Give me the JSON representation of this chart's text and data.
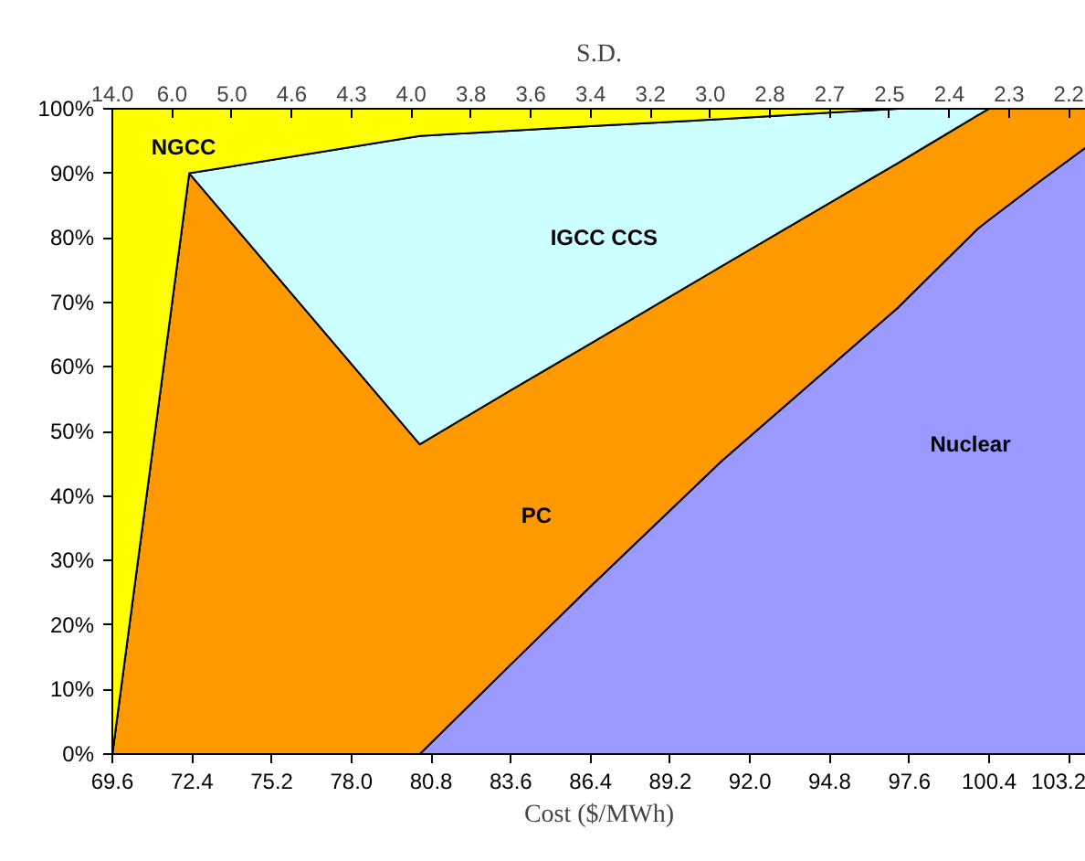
{
  "chart_data": {
    "type": "area",
    "stacked": true,
    "xlabel": "Cost ($/MWh)",
    "x2label": "S.D.",
    "x": [
      69.6,
      72.3,
      80.4,
      83.6,
      86.4,
      91.0,
      96.0,
      97.2,
      100.0,
      100.4,
      102.1,
      103.8
    ],
    "series": [
      {
        "name": "Nuclear",
        "color": "#9999ff",
        "values": [
          0,
          0,
          0,
          13.9,
          26,
          45.4,
          64.6,
          69.2,
          81.4,
          82.8,
          88.5,
          94
        ]
      },
      {
        "name": "PC",
        "color": "#ff9900",
        "values": [
          0,
          90,
          48,
          42.5,
          37.6,
          30.2,
          23.9,
          22.4,
          17.6,
          17.2,
          11.5,
          6
        ]
      },
      {
        "name": "IGCC CCS",
        "color": "#ccffff",
        "values": [
          0,
          0,
          47.8,
          40.2,
          33.7,
          22.8,
          11.2,
          8.4,
          1.0,
          0,
          null,
          null
        ]
      },
      {
        "name": "NGCC",
        "color": "#ffff00",
        "values": [
          100,
          10,
          4.2,
          3.4,
          2.7,
          1.6,
          0.3,
          0,
          null,
          null,
          null,
          null
        ]
      }
    ],
    "xlim": [
      69.6,
      103.8
    ],
    "xticks": [
      69.6,
      72.4,
      75.2,
      {
        "value": 78.0,
        "label": "78.0"
      },
      80.8,
      83.6,
      86.4,
      89.2,
      {
        "value": 92.0,
        "label": "92.0"
      },
      94.8,
      97.6,
      100.4,
      103.2
    ],
    "annotations": [
      "14.0",
      "6.0",
      "5.0",
      "4.6",
      "4.3",
      "4.0",
      "3.8",
      "3.6",
      "3.4",
      "3.2",
      "3.0",
      "2.8",
      "2.7",
      "2.5",
      "2.4",
      "2.3",
      "2.2"
    ],
    "ylim": [
      0,
      100
    ],
    "yticks": [
      {
        "value": 0,
        "label": "0%"
      },
      {
        "value": 10,
        "label": "10%"
      },
      {
        "value": 20,
        "label": "20%"
      },
      {
        "value": 30,
        "label": "30%"
      },
      {
        "value": 40,
        "label": "40%"
      },
      {
        "value": 50,
        "label": "50%"
      },
      {
        "value": 60,
        "label": "60%"
      },
      {
        "value": 70,
        "label": "70%"
      },
      {
        "value": 80,
        "label": "80%"
      },
      {
        "value": 90,
        "label": "90%"
      },
      {
        "value": 100,
        "label": "100%"
      }
    ]
  }
}
